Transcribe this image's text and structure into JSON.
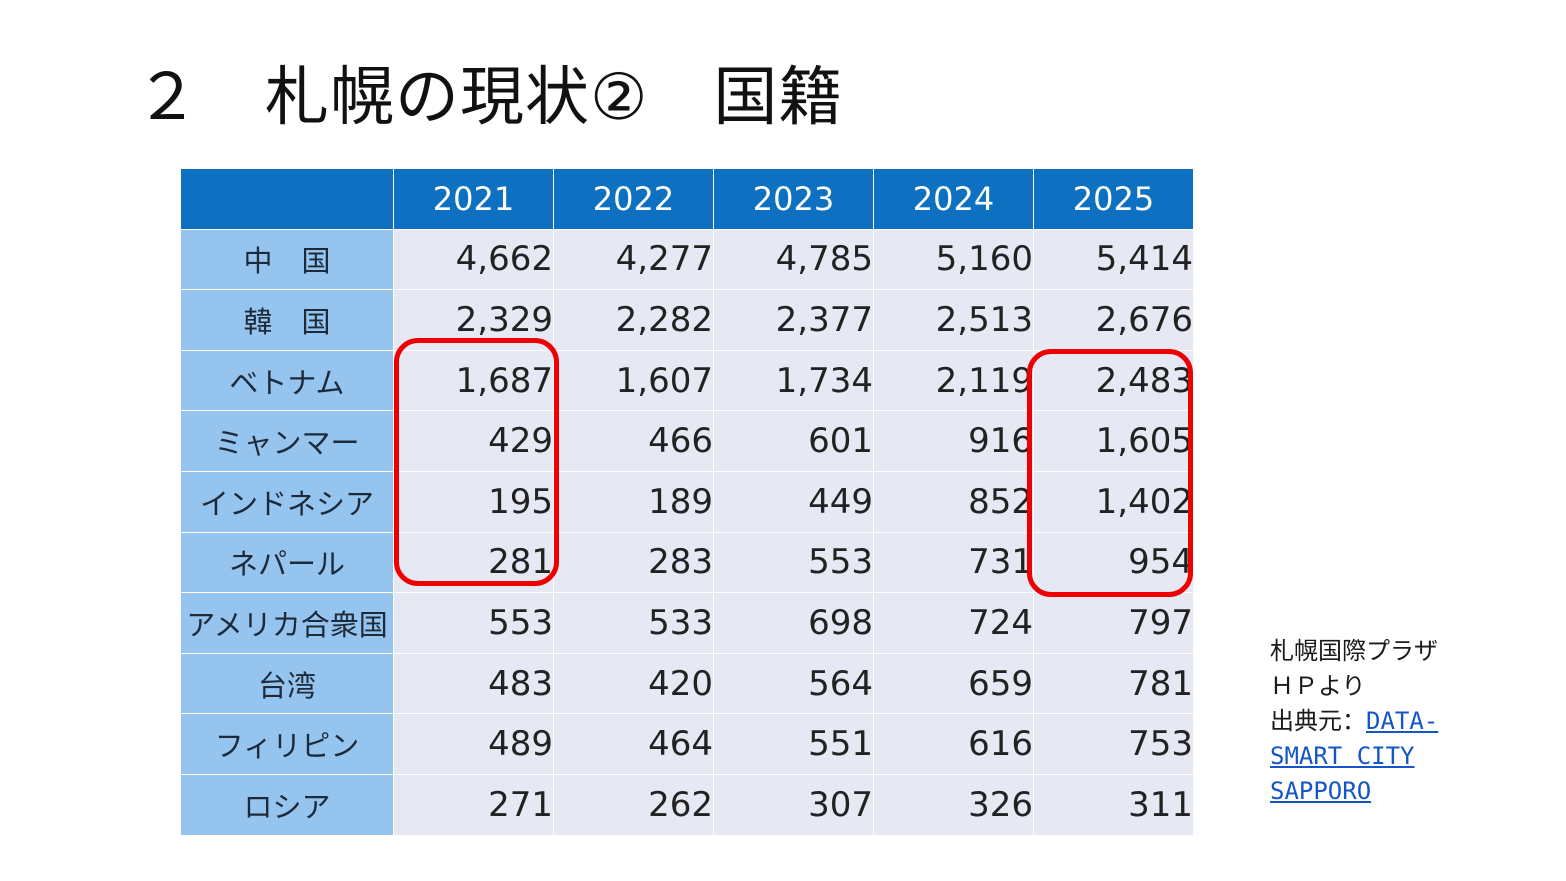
{
  "title": "２　札幌の現状②　国籍",
  "table": {
    "years": [
      "2021",
      "2022",
      "2023",
      "2024",
      "2025"
    ],
    "rows": [
      {
        "country": "中　国",
        "values": [
          "4,662",
          "4,277",
          "4,785",
          "5,160",
          "5,414"
        ]
      },
      {
        "country": "韓　国",
        "values": [
          "2,329",
          "2,282",
          "2,377",
          "2,513",
          "2,676"
        ]
      },
      {
        "country": "ベトナム",
        "values": [
          "1,687",
          "1,607",
          "1,734",
          "2,119",
          "2,483"
        ]
      },
      {
        "country": "ミャンマー",
        "values": [
          "429",
          "466",
          "601",
          "916",
          "1,605"
        ]
      },
      {
        "country": "インドネシア",
        "values": [
          "195",
          "189",
          "449",
          "852",
          "1,402"
        ]
      },
      {
        "country": "ネパール",
        "values": [
          "281",
          "283",
          "553",
          "731",
          "954"
        ]
      },
      {
        "country": "アメリカ合衆国",
        "values": [
          "553",
          "533",
          "698",
          "724",
          "797"
        ]
      },
      {
        "country": "台湾",
        "values": [
          "483",
          "420",
          "564",
          "659",
          "781"
        ]
      },
      {
        "country": "フィリピン",
        "values": [
          "489",
          "464",
          "551",
          "616",
          "753"
        ]
      },
      {
        "country": "ロシア",
        "values": [
          "271",
          "262",
          "307",
          "326",
          "311"
        ]
      }
    ]
  },
  "highlights": [
    {
      "column": "2021",
      "rows": [
        "ベトナム",
        "ミャンマー",
        "インドネシア",
        "ネパール"
      ],
      "color": "#ee0000"
    },
    {
      "column": "2025",
      "rows": [
        "ベトナム",
        "ミャンマー",
        "インドネシア",
        "ネパール"
      ],
      "color": "#ee0000"
    }
  ],
  "note": {
    "line1": "札幌国際プラザ",
    "line2": "ＨＰより",
    "source_prefix": "出典元：",
    "link_line1": "DATA-",
    "link_line2": "SMART CITY",
    "link_line3": "SAPPORO"
  },
  "colors": {
    "header_bg": "#0d70c0",
    "country_bg": "#95c5ef",
    "cell_bg": "#e6e9f3",
    "highlight": "#ee0000",
    "link": "#1456c6"
  }
}
